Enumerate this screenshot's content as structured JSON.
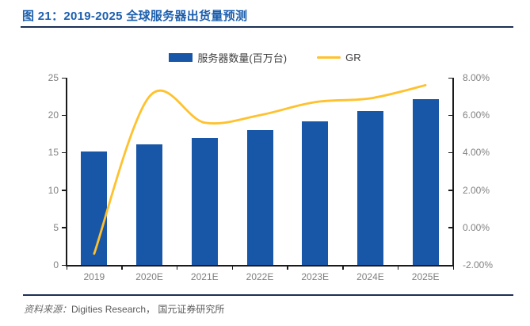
{
  "figure": {
    "title": "图 21：2019-2025 全球服务器出货量预测",
    "source": {
      "prefix": "资料来源：",
      "text": "Digities Research， 国元证券研究所"
    }
  },
  "chart_data": {
    "type": "bar",
    "subtype": "bar+line dual-axis combo",
    "title": "2019-2025 全球服务器出货量预测",
    "categories": [
      "2019",
      "2020E",
      "2021E",
      "2022E",
      "2023E",
      "2024E",
      "2025E"
    ],
    "series": [
      {
        "name": "服务器数量(百万台)",
        "type": "bar",
        "yaxis": "left",
        "color": "#1856a7",
        "values": [
          15.1,
          16.1,
          17.0,
          18.0,
          19.2,
          20.5,
          22.1
        ]
      },
      {
        "name": "GR",
        "type": "line",
        "yaxis": "right",
        "color": "#ffc12d",
        "values": [
          -1.4,
          7.0,
          5.6,
          6.0,
          6.7,
          6.9,
          7.6
        ]
      }
    ],
    "left_axis": {
      "min": 0,
      "max": 25,
      "step": 5,
      "tick_labels": [
        "0",
        "5",
        "10",
        "15",
        "20",
        "25"
      ]
    },
    "right_axis": {
      "min": -2,
      "max": 8,
      "step": 2,
      "tick_labels": [
        "-2.00%",
        "0.00%",
        "2.00%",
        "4.00%",
        "6.00%",
        "8.00%"
      ]
    },
    "legend_position": "top-center",
    "grid": false
  }
}
